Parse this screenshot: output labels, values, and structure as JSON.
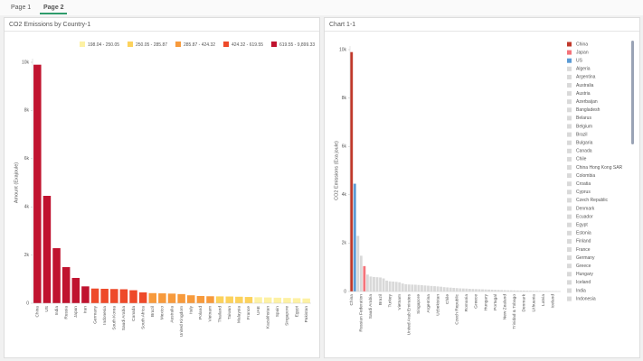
{
  "tabs": [
    "Page 1",
    "Page 2"
  ],
  "chart_data": [
    {
      "type": "bar",
      "title": "CO2 Emissions by Country-1",
      "y_label": "Amount (Exajoule)",
      "categories": [
        "China",
        "US",
        "India",
        "Russia",
        "Japan",
        "Iran",
        "Germany",
        "Indonesia",
        "South Korea",
        "Saudi Arabia",
        "Canada",
        "South Africa",
        "Brazil",
        "Mexico",
        "Australia",
        "United Kingdom",
        "Italy",
        "Poland",
        "Vietnam",
        "Thailand",
        "Taiwan",
        "Malaysia",
        "France",
        "UAE",
        "Kazakhstan",
        "Spain",
        "Singapore",
        "Egypt",
        "Pakistan"
      ],
      "values": [
        9899.33,
        4457,
        2285,
        1500,
        1050,
        700,
        610,
        600,
        590,
        580,
        540,
        450,
        420,
        410,
        400,
        380,
        330,
        300,
        290,
        285,
        280,
        270,
        260,
        250,
        240,
        230,
        220,
        210,
        198.04
      ],
      "bins": [
        {
          "label": "198.04 - 250.05",
          "color": "#fdf1a4",
          "range": [
            198.04,
            250.05
          ]
        },
        {
          "label": "250.05 - 285.87",
          "color": "#fcd25c",
          "range": [
            250.05,
            285.87
          ]
        },
        {
          "label": "285.87 - 424.32",
          "color": "#f79a3c",
          "range": [
            285.87,
            424.32
          ]
        },
        {
          "label": "424.32 - 619.55",
          "color": "#ee4a2a",
          "range": [
            424.32,
            619.55
          ]
        },
        {
          "label": "619.55 - 9,899.33",
          "color": "#c0132f",
          "range": [
            619.55,
            9899.33
          ]
        }
      ],
      "ylim": [
        0,
        10000
      ],
      "yticks": [
        0,
        {
          "value": 2000,
          "label": "2k"
        },
        {
          "value": 4000,
          "label": "4k"
        },
        {
          "value": 6000,
          "label": "6k"
        },
        {
          "value": 8000,
          "label": "8k"
        },
        {
          "value": 10000,
          "label": "10k"
        }
      ]
    },
    {
      "type": "bar",
      "title": "Chart 1-1",
      "y_label": "CO2 Emissions (Exa joule)",
      "categories": [
        "China",
        null,
        null,
        "Russian Federation",
        null,
        null,
        "Saudi Arabia",
        null,
        null,
        "Brazil",
        null,
        null,
        "Turkey",
        null,
        null,
        "Vietnam",
        null,
        null,
        "United Arab Emirates",
        null,
        null,
        "Singapore",
        null,
        null,
        "Argentina",
        null,
        null,
        "Uzbekistan",
        null,
        null,
        "Chile",
        null,
        null,
        "Czech Republic",
        null,
        null,
        "Romania",
        null,
        null,
        "Greece",
        null,
        null,
        "Hungary",
        null,
        null,
        "Portugal",
        null,
        null,
        "New Zealand",
        null,
        null,
        "Trinidad & Tobago",
        null,
        null,
        "Denmark",
        null,
        null,
        "Lithuania",
        null,
        null,
        "Latvia",
        null,
        null,
        "Iceland",
        null,
        null
      ],
      "values": [
        9899,
        4457,
        2300,
        1480,
        1050,
        700,
        620,
        600,
        590,
        580,
        540,
        450,
        420,
        410,
        400,
        380,
        330,
        300,
        290,
        285,
        280,
        270,
        260,
        250,
        240,
        230,
        220,
        210,
        198,
        180,
        170,
        160,
        150,
        140,
        130,
        125,
        120,
        110,
        105,
        100,
        95,
        90,
        85,
        80,
        75,
        70,
        65,
        60,
        55,
        50,
        48,
        45,
        42,
        40,
        38,
        35,
        32,
        30,
        28,
        25,
        22,
        20,
        18,
        15,
        12,
        10
      ],
      "colors": [
        "#c0392b",
        "#5b9bd5",
        "#d9d9d9",
        "#d9d9d9",
        "#f4737a",
        "#d9d9d9",
        "#d9d9d9",
        "#d9d9d9",
        "#d9d9d9",
        "#d9d9d9",
        "#d9d9d9",
        "#d9d9d9",
        "#d9d9d9",
        "#d9d9d9",
        "#d9d9d9",
        "#d9d9d9",
        "#d9d9d9",
        "#d9d9d9",
        "#d9d9d9",
        "#d9d9d9",
        "#d9d9d9",
        "#d9d9d9",
        "#d9d9d9",
        "#d9d9d9",
        "#d9d9d9",
        "#d9d9d9",
        "#d9d9d9",
        "#d9d9d9",
        "#d9d9d9",
        "#d9d9d9",
        "#d9d9d9",
        "#d9d9d9",
        "#d9d9d9",
        "#d9d9d9",
        "#d9d9d9",
        "#d9d9d9",
        "#d9d9d9",
        "#d9d9d9",
        "#d9d9d9",
        "#d9d9d9",
        "#d9d9d9",
        "#d9d9d9",
        "#d9d9d9",
        "#d9d9d9",
        "#d9d9d9",
        "#d9d9d9",
        "#d9d9d9",
        "#d9d9d9",
        "#d9d9d9",
        "#d9d9d9",
        "#d9d9d9",
        "#d9d9d9",
        "#d9d9d9",
        "#d9d9d9",
        "#d9d9d9",
        "#d9d9d9",
        "#d9d9d9",
        "#d9d9d9",
        "#d9d9d9",
        "#d9d9d9",
        "#d9d9d9",
        "#d9d9d9",
        "#d9d9d9",
        "#d9d9d9",
        "#d9d9d9",
        "#d9d9d9"
      ],
      "legend": [
        {
          "name": "China",
          "color": "#c0392b"
        },
        {
          "name": "Japan",
          "color": "#f4737a"
        },
        {
          "name": "US",
          "color": "#5b9bd5"
        },
        {
          "name": "Algeria",
          "color": "#d9d9d9"
        },
        {
          "name": "Argentina",
          "color": "#d9d9d9"
        },
        {
          "name": "Australia",
          "color": "#d9d9d9"
        },
        {
          "name": "Austria",
          "color": "#d9d9d9"
        },
        {
          "name": "Azerbaijan",
          "color": "#d9d9d9"
        },
        {
          "name": "Bangladesh",
          "color": "#d9d9d9"
        },
        {
          "name": "Belarus",
          "color": "#d9d9d9"
        },
        {
          "name": "Belgium",
          "color": "#d9d9d9"
        },
        {
          "name": "Brazil",
          "color": "#d9d9d9"
        },
        {
          "name": "Bulgaria",
          "color": "#d9d9d9"
        },
        {
          "name": "Canada",
          "color": "#d9d9d9"
        },
        {
          "name": "Chile",
          "color": "#d9d9d9"
        },
        {
          "name": "China Hong Kong SAR",
          "color": "#d9d9d9"
        },
        {
          "name": "Colombia",
          "color": "#d9d9d9"
        },
        {
          "name": "Croatia",
          "color": "#d9d9d9"
        },
        {
          "name": "Cyprus",
          "color": "#d9d9d9"
        },
        {
          "name": "Czech Republic",
          "color": "#d9d9d9"
        },
        {
          "name": "Denmark",
          "color": "#d9d9d9"
        },
        {
          "name": "Ecuador",
          "color": "#d9d9d9"
        },
        {
          "name": "Egypt",
          "color": "#d9d9d9"
        },
        {
          "name": "Estonia",
          "color": "#d9d9d9"
        },
        {
          "name": "Finland",
          "color": "#d9d9d9"
        },
        {
          "name": "France",
          "color": "#d9d9d9"
        },
        {
          "name": "Germany",
          "color": "#d9d9d9"
        },
        {
          "name": "Greece",
          "color": "#d9d9d9"
        },
        {
          "name": "Hungary",
          "color": "#d9d9d9"
        },
        {
          "name": "Iceland",
          "color": "#d9d9d9"
        },
        {
          "name": "India",
          "color": "#d9d9d9"
        },
        {
          "name": "Indonesia",
          "color": "#d9d9d9"
        }
      ],
      "ylim": [
        0,
        10000
      ],
      "yticks": [
        0,
        {
          "value": 2000,
          "label": "2k"
        },
        {
          "value": 4000,
          "label": "4k"
        },
        {
          "value": 6000,
          "label": "6k"
        },
        {
          "value": 8000,
          "label": "8k"
        },
        {
          "value": 10000,
          "label": "10k"
        }
      ]
    }
  ]
}
